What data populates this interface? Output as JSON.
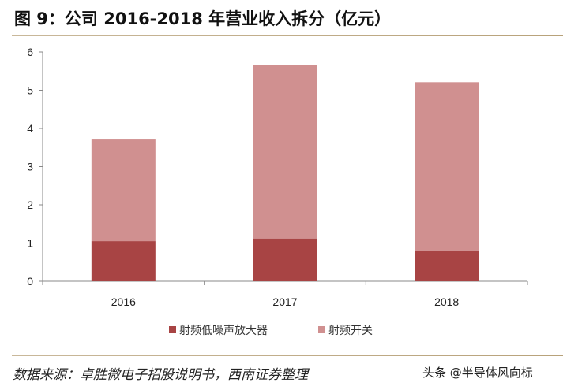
{
  "title": "图 9：公司 2016-2018 年营业收入拆分（亿元）",
  "source": "数据来源：卓胜微电子招股说明书，西南证券整理",
  "watermark": "头条 @半导体风向标",
  "chart_data": {
    "type": "bar",
    "stacked": true,
    "title": "",
    "xlabel": "",
    "ylabel": "",
    "categories": [
      "2016",
      "2017",
      "2018"
    ],
    "ylim": [
      0,
      6
    ],
    "yticks": [
      "0",
      "1",
      "2",
      "3",
      "4",
      "5",
      "6"
    ],
    "grid": false,
    "legend_position": "bottom",
    "series": [
      {
        "name": "射频低噪声放大器",
        "values": [
          1.05,
          1.12,
          0.81
        ],
        "color": "#a84444"
      },
      {
        "name": "射频开关",
        "values": [
          2.66,
          4.55,
          4.4
        ],
        "color": "#d09090"
      }
    ]
  }
}
